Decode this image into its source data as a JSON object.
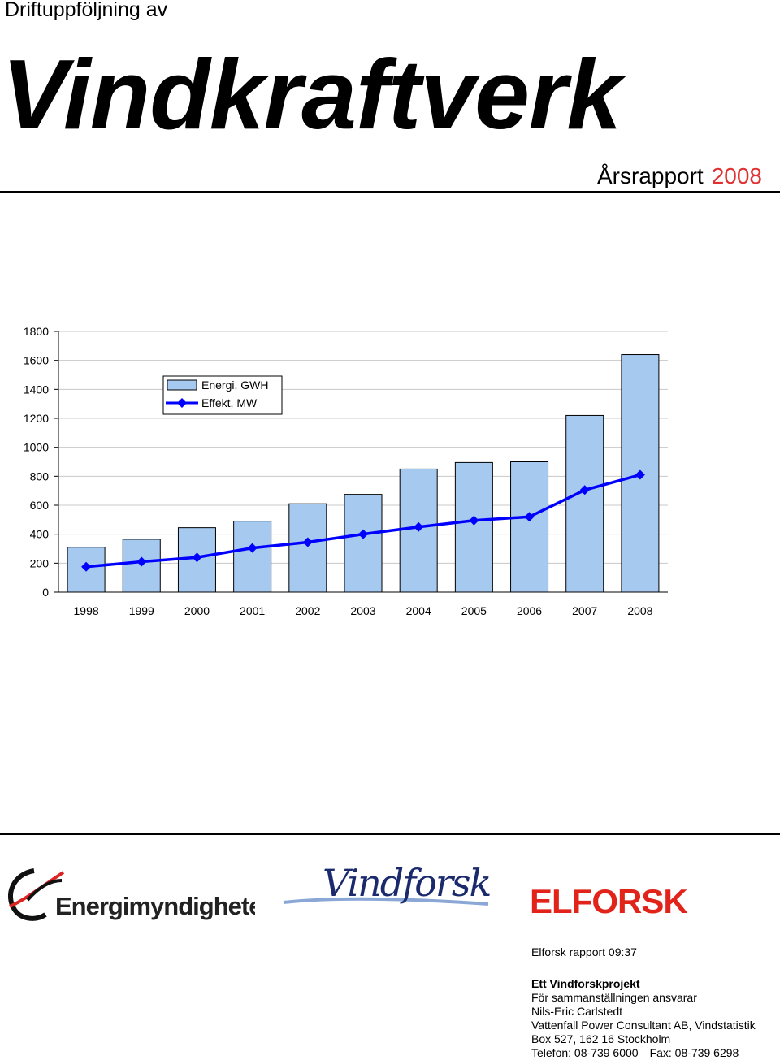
{
  "header": {
    "series": "Driftuppföljning av",
    "title": "Vindkraftverk",
    "report_type": "Årsrapport",
    "report_year": "2008"
  },
  "chart_data": {
    "type": "bar",
    "categories": [
      "1998",
      "1999",
      "2000",
      "2001",
      "2002",
      "2003",
      "2004",
      "2005",
      "2006",
      "2007",
      "2008"
    ],
    "series": [
      {
        "name": "Energi, GWH",
        "kind": "bar",
        "color": "#a6c9f0",
        "values": [
          310,
          365,
          445,
          490,
          610,
          675,
          850,
          895,
          900,
          1220,
          1640
        ]
      },
      {
        "name": "Effekt, MW",
        "kind": "line",
        "color": "#0000ff",
        "values": [
          175,
          210,
          240,
          305,
          345,
          400,
          450,
          495,
          520,
          705,
          810
        ]
      }
    ],
    "ylim": [
      0,
      1800
    ],
    "yticks": [
      "0",
      "200",
      "400",
      "600",
      "800",
      "1000",
      "1200",
      "1400",
      "1600",
      "1800"
    ],
    "grid": true,
    "legend": "top-left"
  },
  "logos": {
    "energimyndigheten": "Energimyndigheten",
    "vindforsk": "Vindforsk",
    "elforsk": "ELFORSK"
  },
  "footer": {
    "report_no": "Elforsk rapport 09:37",
    "project": "Ett Vindforskprojekt",
    "responsible": "För sammanställningen ansvarar",
    "name": "Nils-Eric Carlstedt",
    "company": "Vattenfall Power Consultant AB, Vindstatistik",
    "address": "Box 527, 162 16 Stockholm",
    "phone": "Telefon: 08-739 6000",
    "fax": "Fax: 08-739 6298"
  }
}
